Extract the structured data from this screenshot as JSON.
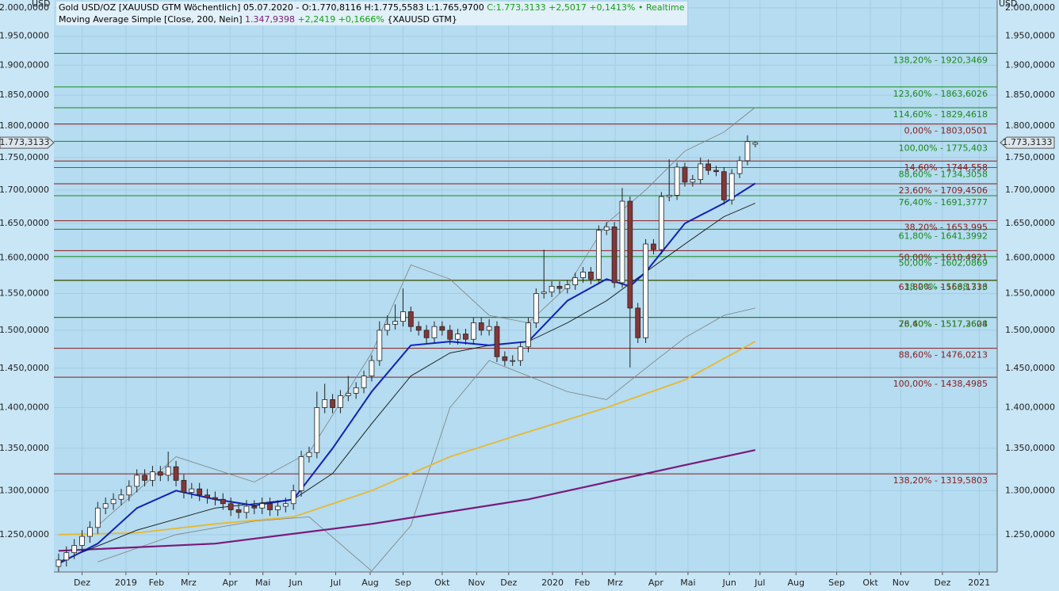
{
  "chart_data": {
    "type": "candlestick",
    "title": "Gold USD/OZ [XAUUSD GTM Wöchentlich] 05.07.2020 - O:1.770,8116 H:1.775,5583 L:1.765,9700",
    "title_change": "C:1.773,3133 +2,5017 +0,1413%",
    "title_status": "• Realtime",
    "subtitle": "Moving Average Simple [Close, 200, Nein]",
    "subtitle_value": "1.347,9398",
    "subtitle_change": "+2,2419 +0,1666%",
    "subtitle_symbol": "{XAUUSD GTM}",
    "y_unit_label": "USD",
    "log_scale": true,
    "grid": true,
    "ylim": [
      1209,
      2014
    ],
    "yticks": [
      {
        "value": 1250,
        "label": "1.250,0000"
      },
      {
        "value": 1300,
        "label": "1.300,0000"
      },
      {
        "value": 1350,
        "label": "1.350,0000"
      },
      {
        "value": 1400,
        "label": "1.400,0000"
      },
      {
        "value": 1450,
        "label": "1.450,0000"
      },
      {
        "value": 1500,
        "label": "1.500,0000"
      },
      {
        "value": 1550,
        "label": "1.550,0000"
      },
      {
        "value": 1600,
        "label": "1.600,0000"
      },
      {
        "value": 1650,
        "label": "1.650,0000"
      },
      {
        "value": 1700,
        "label": "1.700,0000"
      },
      {
        "value": 1750,
        "label": "1.750,0000"
      },
      {
        "value": 1800,
        "label": "1.800,0000"
      },
      {
        "value": 1850,
        "label": "1.850,0000"
      },
      {
        "value": 1900,
        "label": "1.900,0000"
      },
      {
        "value": 1950,
        "label": "1.950,0000"
      },
      {
        "value": 2000,
        "label": "2.000,0000"
      }
    ],
    "xlim": [
      -0.6,
      119.9
    ],
    "xticks": [
      {
        "value": 3.0,
        "label": "Dez"
      },
      {
        "value": 8.6,
        "label": "2019"
      },
      {
        "value": 12.5,
        "label": "Feb"
      },
      {
        "value": 16.6,
        "label": "Mrz"
      },
      {
        "value": 21.9,
        "label": "Apr"
      },
      {
        "value": 26.1,
        "label": "Mai"
      },
      {
        "value": 30.3,
        "label": "Jun"
      },
      {
        "value": 35.4,
        "label": "Jul"
      },
      {
        "value": 39.8,
        "label": "Aug"
      },
      {
        "value": 44.0,
        "label": "Sep"
      },
      {
        "value": 49.0,
        "label": "Okt"
      },
      {
        "value": 53.4,
        "label": "Nov"
      },
      {
        "value": 57.5,
        "label": "Dez"
      },
      {
        "value": 63.1,
        "label": "2020"
      },
      {
        "value": 66.9,
        "label": "Feb"
      },
      {
        "value": 71.1,
        "label": "Mrz"
      },
      {
        "value": 76.3,
        "label": "Apr"
      },
      {
        "value": 80.4,
        "label": "Mai"
      },
      {
        "value": 85.7,
        "label": "Jun"
      },
      {
        "value": 89.6,
        "label": "Jul"
      },
      {
        "value": 94.2,
        "label": "Aug"
      },
      {
        "value": 99.4,
        "label": "Sep"
      },
      {
        "value": 103.7,
        "label": "Okt"
      },
      {
        "value": 107.6,
        "label": "Nov"
      },
      {
        "value": 112.9,
        "label": "Dez"
      },
      {
        "value": 117.6,
        "label": "2021"
      }
    ],
    "up_color": "#ffffff",
    "down_color": "#8b3434",
    "candles": [
      [
        1215,
        1229,
        1208,
        1222
      ],
      [
        1222,
        1237,
        1215,
        1230
      ],
      [
        1230,
        1245,
        1223,
        1238
      ],
      [
        1238,
        1255,
        1231,
        1248
      ],
      [
        1248,
        1265,
        1241,
        1258
      ],
      [
        1258,
        1287,
        1251,
        1280
      ],
      [
        1280,
        1292,
        1273,
        1285
      ],
      [
        1285,
        1297,
        1278,
        1290
      ],
      [
        1290,
        1302,
        1283,
        1295
      ],
      [
        1295,
        1312,
        1288,
        1305
      ],
      [
        1305,
        1325,
        1298,
        1318
      ],
      [
        1318,
        1325,
        1305,
        1312
      ],
      [
        1312,
        1329,
        1305,
        1322
      ],
      [
        1322,
        1329,
        1311,
        1318
      ],
      [
        1318,
        1346,
        1311,
        1328
      ],
      [
        1328,
        1335,
        1305,
        1312
      ],
      [
        1312,
        1319,
        1291,
        1298
      ],
      [
        1298,
        1309,
        1291,
        1302
      ],
      [
        1302,
        1309,
        1288,
        1295
      ],
      [
        1295,
        1302,
        1285,
        1292
      ],
      [
        1292,
        1299,
        1283,
        1290
      ],
      [
        1290,
        1297,
        1278,
        1285
      ],
      [
        1285,
        1292,
        1271,
        1278
      ],
      [
        1278,
        1285,
        1268,
        1275
      ],
      [
        1275,
        1289,
        1268,
        1282
      ],
      [
        1282,
        1289,
        1273,
        1280
      ],
      [
        1280,
        1292,
        1273,
        1285
      ],
      [
        1285,
        1292,
        1271,
        1278
      ],
      [
        1278,
        1289,
        1271,
        1282
      ],
      [
        1282,
        1292,
        1275,
        1285
      ],
      [
        1285,
        1307,
        1278,
        1300
      ],
      [
        1300,
        1347,
        1293,
        1340
      ],
      [
        1340,
        1352,
        1333,
        1345
      ],
      [
        1345,
        1420,
        1338,
        1400
      ],
      [
        1400,
        1430,
        1393,
        1410
      ],
      [
        1410,
        1417,
        1393,
        1400
      ],
      [
        1400,
        1422,
        1393,
        1415
      ],
      [
        1415,
        1440,
        1408,
        1418
      ],
      [
        1418,
        1432,
        1411,
        1425
      ],
      [
        1425,
        1447,
        1418,
        1440
      ],
      [
        1440,
        1467,
        1433,
        1460
      ],
      [
        1460,
        1512,
        1453,
        1500
      ],
      [
        1500,
        1520,
        1493,
        1508
      ],
      [
        1508,
        1535,
        1501,
        1512
      ],
      [
        1512,
        1557,
        1505,
        1525
      ],
      [
        1525,
        1532,
        1498,
        1505
      ],
      [
        1505,
        1512,
        1493,
        1500
      ],
      [
        1500,
        1507,
        1483,
        1490
      ],
      [
        1490,
        1512,
        1483,
        1505
      ],
      [
        1505,
        1512,
        1493,
        1500
      ],
      [
        1500,
        1507,
        1481,
        1488
      ],
      [
        1488,
        1502,
        1481,
        1495
      ],
      [
        1495,
        1502,
        1481,
        1488
      ],
      [
        1488,
        1517,
        1481,
        1510
      ],
      [
        1510,
        1517,
        1493,
        1500
      ],
      [
        1500,
        1515,
        1493,
        1505
      ],
      [
        1505,
        1512,
        1458,
        1465
      ],
      [
        1465,
        1472,
        1453,
        1460
      ],
      [
        1460,
        1467,
        1453,
        1460
      ],
      [
        1460,
        1485,
        1453,
        1478
      ],
      [
        1478,
        1517,
        1471,
        1510
      ],
      [
        1510,
        1557,
        1503,
        1550
      ],
      [
        1550,
        1612,
        1543,
        1552
      ],
      [
        1552,
        1567,
        1545,
        1560
      ],
      [
        1560,
        1567,
        1550,
        1557
      ],
      [
        1557,
        1569,
        1550,
        1562
      ],
      [
        1562,
        1579,
        1555,
        1572
      ],
      [
        1572,
        1587,
        1565,
        1580
      ],
      [
        1580,
        1587,
        1563,
        1570
      ],
      [
        1570,
        1647,
        1563,
        1640
      ],
      [
        1640,
        1652,
        1633,
        1645
      ],
      [
        1645,
        1652,
        1558,
        1565
      ],
      [
        1565,
        1703,
        1558,
        1683
      ],
      [
        1683,
        1690,
        1451,
        1530
      ],
      [
        1530,
        1537,
        1483,
        1490
      ],
      [
        1490,
        1627,
        1483,
        1620
      ],
      [
        1620,
        1627,
        1605,
        1612
      ],
      [
        1612,
        1697,
        1605,
        1690
      ],
      [
        1690,
        1747,
        1683,
        1692
      ],
      [
        1692,
        1742,
        1685,
        1735
      ],
      [
        1735,
        1742,
        1705,
        1712
      ],
      [
        1712,
        1723,
        1705,
        1716
      ],
      [
        1716,
        1750,
        1709,
        1740
      ],
      [
        1740,
        1747,
        1723,
        1730
      ],
      [
        1730,
        1737,
        1721,
        1728
      ],
      [
        1728,
        1735,
        1678,
        1685
      ],
      [
        1685,
        1732,
        1678,
        1725
      ],
      [
        1725,
        1752,
        1718,
        1745
      ],
      [
        1745,
        1785,
        1738,
        1775
      ],
      [
        1770.8116,
        1775.5583,
        1765.97,
        1773.3133
      ]
    ],
    "lines": [
      {
        "color": "#808080",
        "width": 0.8,
        "x": [
          5,
          15,
          25,
          32,
          40,
          45,
          50,
          55,
          60,
          65,
          70,
          75,
          80,
          85,
          89
        ],
        "values": [
          1260,
          1340,
          1310,
          1345,
          1470,
          1590,
          1570,
          1520,
          1510,
          1560,
          1650,
          1700,
          1760,
          1790,
          1830
        ]
      },
      {
        "color": "#808080",
        "width": 0.8,
        "x": [
          5,
          15,
          25,
          32,
          40,
          45,
          50,
          55,
          60,
          65,
          70,
          75,
          80,
          85,
          89
        ],
        "values": [
          1220,
          1250,
          1265,
          1270,
          1210,
          1260,
          1400,
          1460,
          1440,
          1420,
          1410,
          1450,
          1490,
          1520,
          1530
        ]
      },
      {
        "color": "#e8b830",
        "width": 1.8,
        "x": [
          0,
          10,
          20,
          30,
          40,
          50,
          60,
          70,
          80,
          89
        ],
        "values": [
          1250,
          1252,
          1262,
          1270,
          1300,
          1340,
          1370,
          1400,
          1435,
          1485
        ]
      },
      {
        "color": "#7a1a7a",
        "width": 2.2,
        "x": [
          0,
          20,
          40,
          60,
          80,
          89
        ],
        "values": [
          1232,
          1240,
          1262,
          1290,
          1330,
          1347.9398
        ]
      },
      {
        "color": "#111111",
        "width": 0.9,
        "x": [
          0,
          10,
          20,
          30,
          35,
          40,
          45,
          50,
          55,
          60,
          65,
          70,
          75,
          80,
          85,
          89
        ],
        "values": [
          1220,
          1255,
          1280,
          1290,
          1320,
          1380,
          1440,
          1470,
          1480,
          1485,
          1510,
          1540,
          1580,
          1620,
          1660,
          1680
        ]
      },
      {
        "color": "#1020c0",
        "width": 2,
        "x": [
          0,
          5,
          10,
          15,
          20,
          25,
          30,
          35,
          40,
          45,
          50,
          55,
          60,
          65,
          70,
          73,
          75,
          80,
          85,
          89
        ],
        "values": [
          1218,
          1240,
          1280,
          1300,
          1290,
          1283,
          1290,
          1350,
          1420,
          1480,
          1485,
          1480,
          1485,
          1540,
          1570,
          1560,
          1580,
          1650,
          1680,
          1710
        ]
      }
    ],
    "levels": [
      {
        "value": 1920.3469,
        "label": "138,20% - 1920,3469",
        "color": "#1a8a1a"
      },
      {
        "value": 1863.6026,
        "label": "123,60% - 1863,6026",
        "color": "#1a8a1a"
      },
      {
        "value": 1829.4618,
        "label": "114,60% - 1829,4618",
        "color": "#1a8a1a"
      },
      {
        "value": 1803.0501,
        "label": "0,00% - 1803,0501",
        "color": "#8b1a1a"
      },
      {
        "value": 1775.403,
        "label": "100,00% - 1775,403",
        "color": "#1a8a1a"
      },
      {
        "value": 1744.558,
        "label": "14,60% - 1744,558",
        "color": "#8b1a1a"
      },
      {
        "value": 1734.3058,
        "label": "88,60% - 1734,3058",
        "color": "#1a8a1a"
      },
      {
        "value": 1709.4506,
        "label": "23,60% - 1709,4506",
        "color": "#8b1a1a"
      },
      {
        "value": 1691.3777,
        "label": "76,40% - 1691,3777",
        "color": "#1a8a1a"
      },
      {
        "value": 1653.995,
        "label": "38,20% - 1653,995",
        "color": "#8b1a1a"
      },
      {
        "value": 1641.3992,
        "label": "61,80% - 1641,3992",
        "color": "#1a8a1a"
      },
      {
        "value": 1610.4921,
        "label": "50,00% - 1610,4921",
        "color": "#8b1a1a"
      },
      {
        "value": 1602.0869,
        "label": "50,00% - 1602,0869",
        "color": "#1a8a1a"
      },
      {
        "value": 1568.1333,
        "label": "61,80% - 1568,1333",
        "color": "#8b1a1a"
      },
      {
        "value": 1568.716,
        "label": "38,20% - 1568,716",
        "color": "#1a8a1a"
      },
      {
        "value": 1517.3604,
        "label": "76,40% - 1517,3604",
        "color": "#8b1a1a"
      },
      {
        "value": 1517.2628,
        "label": "23,60% - 1517,2628",
        "color": "#1a8a1a"
      },
      {
        "value": 1476.0213,
        "label": "88,60% - 1476,0213",
        "color": "#8b1a1a"
      },
      {
        "value": 1438.4985,
        "label": "100,00% - 1438,4985",
        "color": "#8b1a1a"
      },
      {
        "value": 1319.5803,
        "label": "138,20% - 1319,5803",
        "color": "#8b1a1a"
      }
    ],
    "price_tag": {
      "value": 1773.3133,
      "label": "1.773,3133"
    }
  }
}
